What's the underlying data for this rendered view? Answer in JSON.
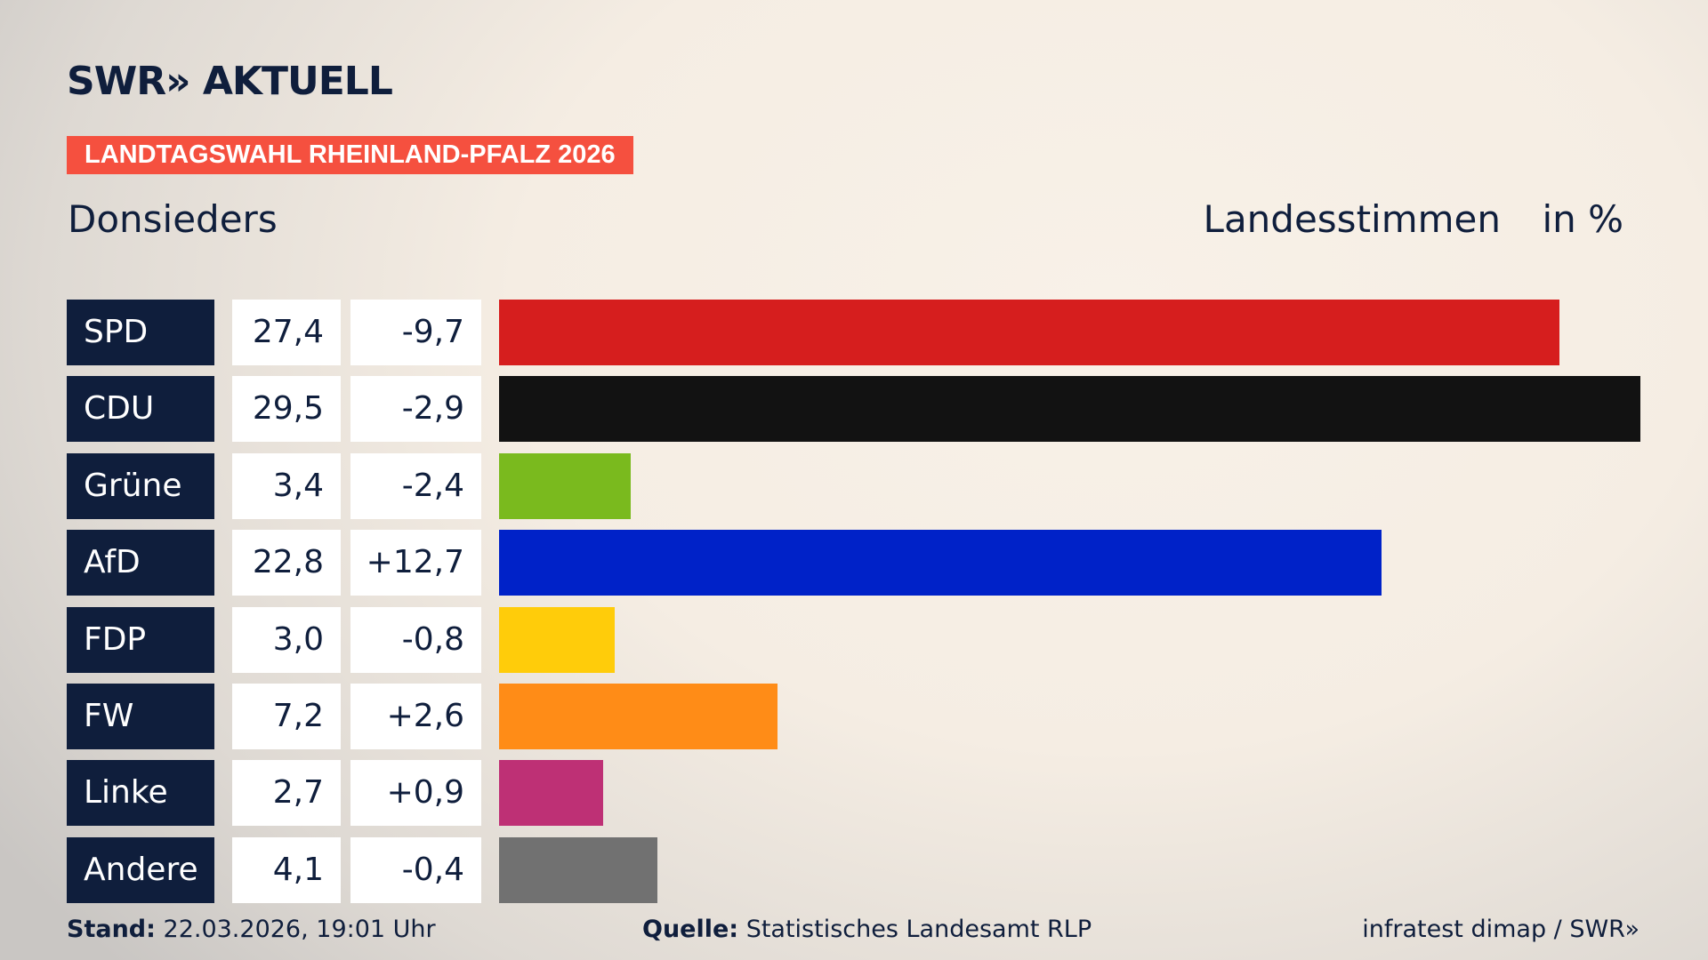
{
  "logo": "SWR» AKTUELL",
  "tag": "LANDTAGSWAHL RHEINLAND-PFALZ 2026",
  "chart_data": {
    "type": "bar",
    "title": "Donsieders",
    "subtitle": "Landesstimmen",
    "unit": "in %",
    "categories": [
      "SPD",
      "CDU",
      "Grüne",
      "AfD",
      "FDP",
      "FW",
      "Linke",
      "Andere"
    ],
    "values": [
      27.4,
      29.5,
      3.4,
      22.8,
      3.0,
      7.2,
      2.7,
      4.1
    ],
    "value_labels": [
      "27,4",
      "29,5",
      "3,4",
      "22,8",
      "3,0",
      "7,2",
      "2,7",
      "4,1"
    ],
    "colors": [
      "#d61e1e",
      "#121212",
      "#7aba1e",
      "#0022c8",
      "#ffcc0a",
      "#ff8c17",
      "#be3075",
      "#717171"
    ],
    "changes": {
      "values": [
        -9.7,
        -2.9,
        -2.4,
        12.7,
        -0.8,
        2.6,
        0.9,
        -0.4
      ],
      "value_labels": [
        "-9,7",
        "-2,9",
        "-2,4",
        "+12,7",
        "-0,8",
        "+2,6",
        "+0,9",
        "-0,4"
      ]
    }
  },
  "footer": {
    "stand_label": "Stand:",
    "stand": "22.03.2026, 19:01 Uhr",
    "source_label": "Quelle:",
    "source": "Statistisches Landesamt RLP",
    "credit": "infratest dimap / SWR»"
  }
}
